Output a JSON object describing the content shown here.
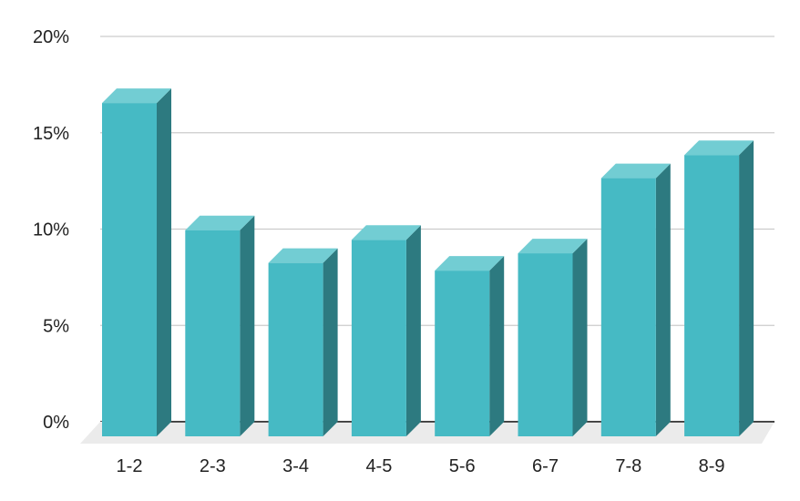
{
  "chart_data": {
    "type": "bar",
    "style": "3d",
    "title": "",
    "xlabel": "",
    "ylabel": "",
    "categories": [
      "1-2",
      "2-3",
      "3-4",
      "4-5",
      "5-6",
      "6-7",
      "7-8",
      "8-9"
    ],
    "values": [
      17.3,
      10.7,
      9.0,
      10.2,
      8.6,
      9.5,
      13.4,
      14.6
    ],
    "ylim": [
      0,
      20
    ],
    "yticks": [
      0,
      5,
      10,
      15,
      20
    ],
    "ytick_labels": [
      "0%",
      "5%",
      "10%",
      "15%",
      "20%"
    ],
    "grid": true,
    "legend": "none",
    "colors": {
      "front": "#46bac4",
      "top": "#72cdd3",
      "side": "#2d7a80",
      "floor": "#ebebeb",
      "grid": "#cccccc",
      "text": "#222222"
    }
  }
}
